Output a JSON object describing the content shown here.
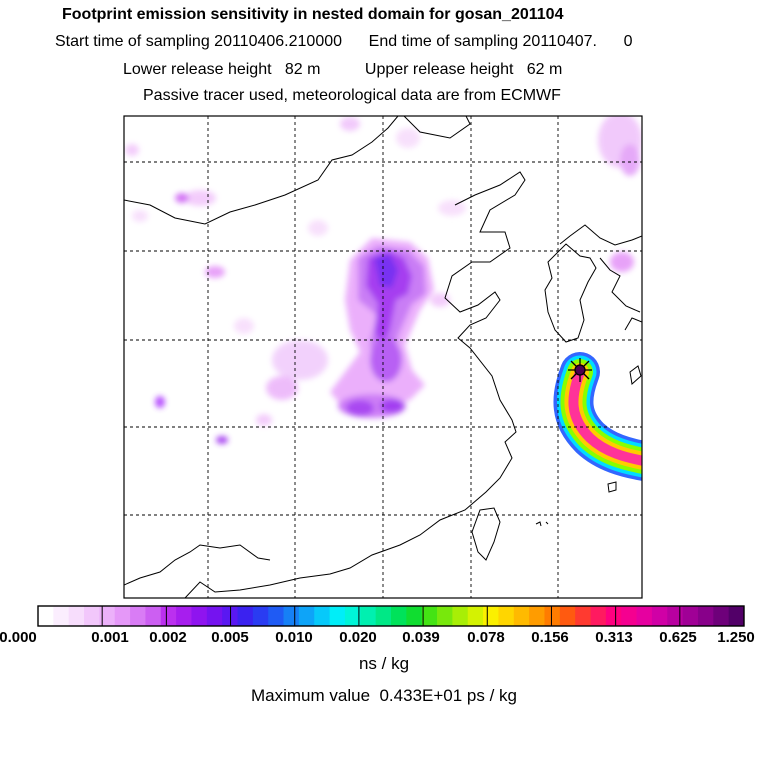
{
  "header": {
    "title": "Footprint emission sensitivity in nested domain for gosan_201104",
    "line2": "Start time of sampling 20110406.210000      End time of sampling 20110407.      0",
    "line3": "Lower release height   82 m          Upper release height   62 m",
    "line4": "Passive tracer used, meteorological data are from ECMWF"
  },
  "map": {
    "grid": "dashed",
    "release_marker": "star-icon",
    "plume_colors": [
      "#ff3399",
      "#ffcc00",
      "#88ff00",
      "#00ddff",
      "#3366ff"
    ],
    "diffuse_color": "#b040ff"
  },
  "colorbar": {
    "labels": [
      "0.000",
      "0.001",
      "0.002",
      "0.005",
      "0.010",
      "0.020",
      "0.039",
      "0.078",
      "0.156",
      "0.313",
      "0.625",
      "1.250"
    ],
    "colors": [
      "#ffffff",
      "#fbeefe",
      "#f7ddfc",
      "#f2c7fb",
      "#ecb1fa",
      "#e598f8",
      "#d97cf5",
      "#cc5ff2",
      "#bb30ef",
      "#a71eee",
      "#8f14ef",
      "#7513f0",
      "#5a18f2",
      "#3b22f0",
      "#2a3cf2",
      "#1f5bf4",
      "#1680f6",
      "#0ea4f8",
      "#07c9fa",
      "#00eef8",
      "#00f5d8",
      "#00f0b0",
      "#00e886",
      "#00e25a",
      "#10dd30",
      "#44e314",
      "#78e80c",
      "#a8ee06",
      "#d4f202",
      "#fbf000",
      "#ffd600",
      "#ffba00",
      "#ff9c00",
      "#ff7c00",
      "#ff5a10",
      "#ff3a30",
      "#ff1a60",
      "#ff0080",
      "#f50090",
      "#e600a0",
      "#d000a6",
      "#b800a0",
      "#a00096",
      "#88008a",
      "#6e007a",
      "#520068"
    ],
    "units": "ns / kg"
  },
  "footer": {
    "max_value": "Maximum value  0.433E+01 ps / kg"
  }
}
